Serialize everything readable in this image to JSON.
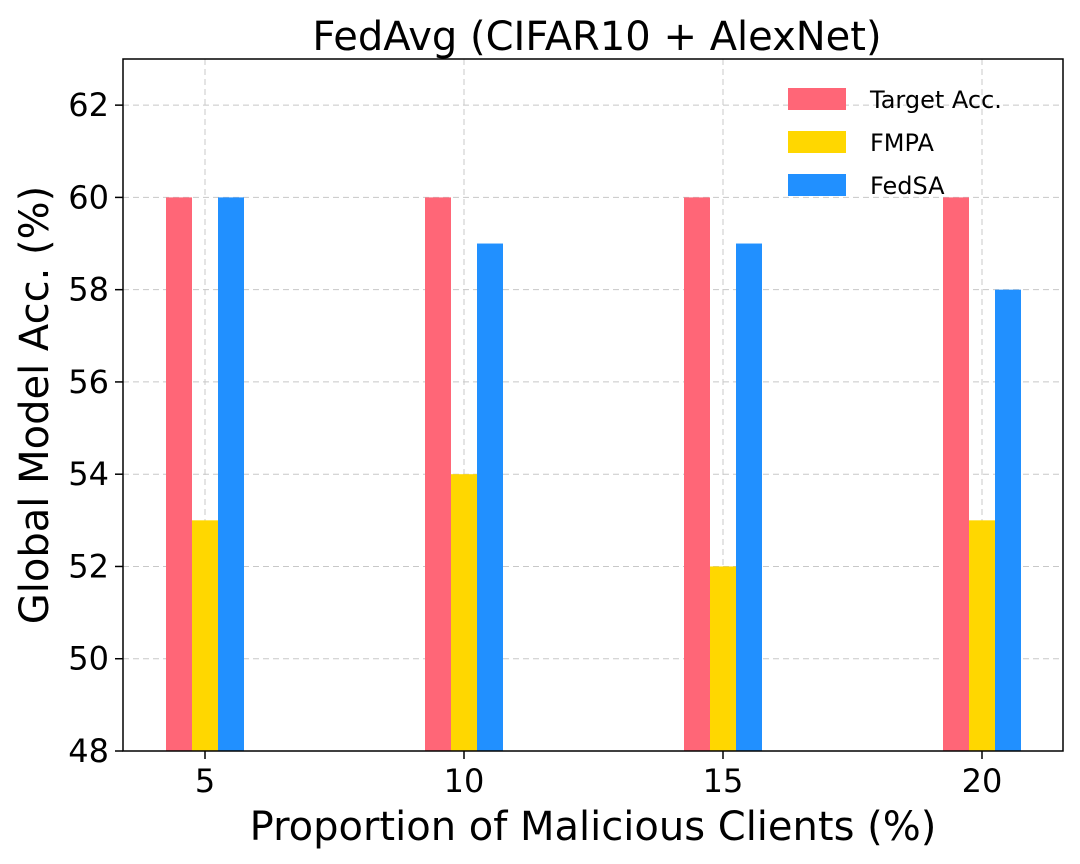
{
  "chart_data": {
    "type": "bar",
    "title": "FedAvg (CIFAR10 + AlexNet)",
    "xlabel": "Proportion of Malicious Clients (%)",
    "ylabel": "Global Model Acc. (%)",
    "categories": [
      "5",
      "10",
      "15",
      "20"
    ],
    "series": [
      {
        "name": "Target Acc.",
        "color": "#ff6677",
        "values": [
          60,
          60,
          60,
          60
        ]
      },
      {
        "name": "FMPA",
        "color": "#ffd700",
        "values": [
          53,
          54,
          52,
          53
        ]
      },
      {
        "name": "FedSA",
        "color": "#2190ff",
        "values": [
          60,
          59,
          59,
          58
        ]
      }
    ],
    "ylim": [
      48,
      63
    ],
    "yticks": [
      48,
      50,
      52,
      54,
      56,
      58,
      60,
      62
    ],
    "grid": true,
    "legend_position": "top-right"
  }
}
